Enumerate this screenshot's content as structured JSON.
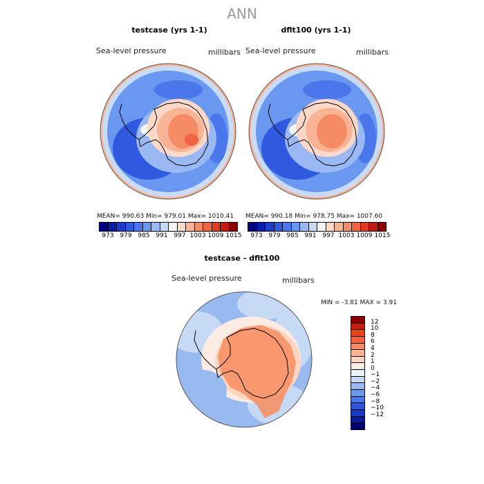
{
  "figure_title": "ANN",
  "panels": [
    {
      "title": "testcase (yrs 1-1)",
      "left_label": "Sea-level pressure",
      "right_label": "millibars",
      "stats": "MEAN= 990.63   Min= 979.01   Max= 1010.41"
    },
    {
      "title": "dflt100 (yrs 1-1)",
      "left_label": "Sea-level pressure",
      "right_label": "millibars",
      "stats": "MEAN= 990.18   Min= 978.75   Max= 1007.60"
    },
    {
      "title": "testcase - dflt100",
      "left_label": "Sea-level pressure",
      "right_label": "millibars",
      "stats": "MIN =   -3.81  MAX =    3.91"
    }
  ],
  "abs_colorbar": {
    "colors": [
      "#000080",
      "#0a1ea8",
      "#1e3ccc",
      "#2f5ae0",
      "#4a78ec",
      "#6a98f0",
      "#9ab8f4",
      "#c8dcf8",
      "#f4f4f4",
      "#fcd8c8",
      "#f9b496",
      "#f58c66",
      "#f06444",
      "#e03c24",
      "#c01c10",
      "#8c0000"
    ],
    "ticks": [
      "973",
      "979",
      "985",
      "991",
      "997",
      "1003",
      "1009",
      "1015"
    ]
  },
  "diff_colorbar": {
    "colors": [
      "#8c0000",
      "#c81e10",
      "#e8441c",
      "#f4643c",
      "#f88c60",
      "#fcb492",
      "#fcd4c0",
      "#fcece4",
      "#eaf2fc",
      "#c6daf6",
      "#98baf0",
      "#6a98ec",
      "#4a78e8",
      "#2a56dc",
      "#1a38c0",
      "#0a1a9a",
      "#000070"
    ],
    "ticks": [
      "12",
      "10",
      "8",
      "6",
      "4",
      "2",
      "1",
      "0",
      "−1",
      "−2",
      "−4",
      "−6",
      "−8",
      "−10",
      "−12"
    ]
  }
}
